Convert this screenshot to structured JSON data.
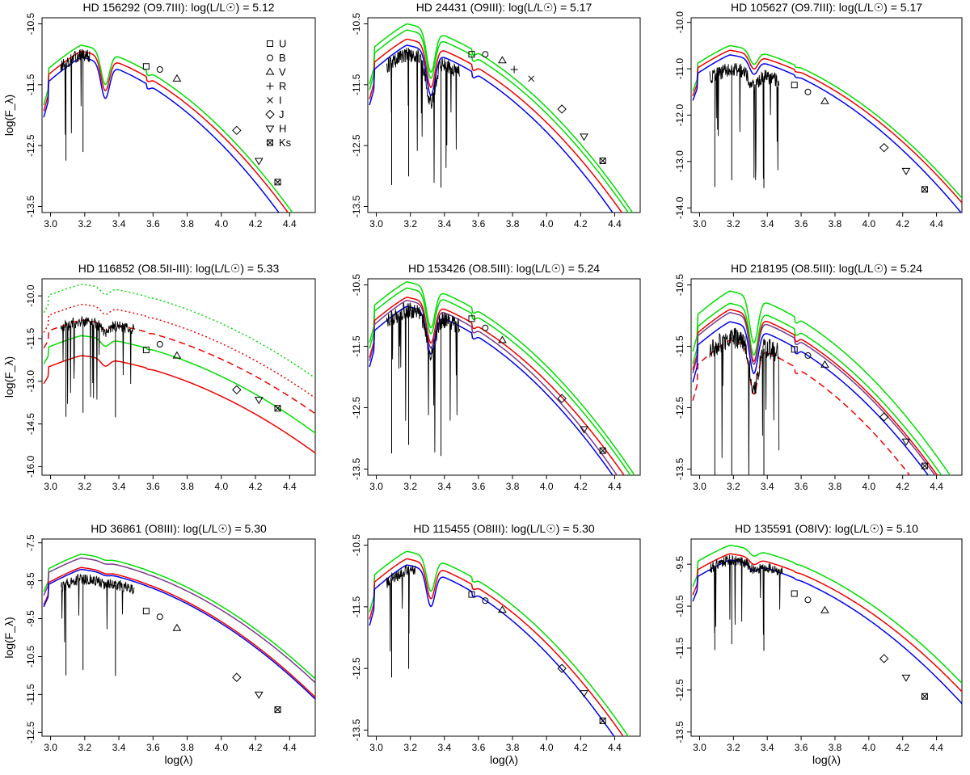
{
  "figure": {
    "xlabel": "log(λ)",
    "ylabel": "log(F_λ)",
    "band_legend": [
      "U",
      "B",
      "V",
      "R",
      "I",
      "J",
      "H",
      "Ks"
    ]
  },
  "colors": {
    "observed_spectrum": "#000000",
    "model_green": "#00dd00",
    "model_red": "#ee0000",
    "model_blue": "#0000ee",
    "model_purple": "#7a3a8a"
  },
  "chart_data": [
    {
      "type": "line",
      "title": "HD 156292 (O9.7III): log(L/L☉) = 5.12",
      "x_ticks": [
        "3.0",
        "3.2",
        "3.4",
        "3.6",
        "3.8",
        "4.0",
        "4.2",
        "4.4"
      ],
      "y_ticks": [
        "-10.5",
        "-11.5",
        "-12.5",
        "-13.5"
      ],
      "xlim": [
        2.95,
        4.55
      ],
      "ylim": [
        -13.6,
        -10.4
      ],
      "band_legend_shown": true,
      "photometry": {
        "x": [
          3.56,
          3.64,
          3.74,
          4.09,
          4.22,
          4.33
        ],
        "y": [
          -11.2,
          -11.25,
          -11.4,
          -12.25,
          -12.75,
          -13.1
        ],
        "bands": [
          "U",
          "B",
          "V",
          "J",
          "H",
          "Ks"
        ]
      },
      "spectrum": {
        "x_range": [
          3.06,
          3.23
        ],
        "level": -11.0,
        "noise": 0.4
      },
      "series": [
        {
          "color": "green",
          "style": "solid",
          "peak": -10.85,
          "offset": 0.12
        },
        {
          "color": "red",
          "style": "solid",
          "peak": -10.95,
          "offset": 0.0
        },
        {
          "color": "blue",
          "style": "solid",
          "peak": -11.05,
          "offset": -0.15
        }
      ],
      "balmer_dip": 0.55
    },
    {
      "type": "line",
      "title": "HD 24431 (O9III): log(L/L☉) = 5.17",
      "x_ticks": [
        "3.0",
        "3.2",
        "3.4",
        "3.6",
        "3.8",
        "4.0",
        "4.2",
        "4.4"
      ],
      "y_ticks": [
        "-10.5",
        "-11.5",
        "-12.5",
        "-13.5"
      ],
      "xlim": [
        2.95,
        4.55
      ],
      "ylim": [
        -13.6,
        -10.4
      ],
      "band_legend_shown": false,
      "photometry": {
        "x": [
          3.56,
          3.64,
          3.74,
          3.81,
          3.91,
          4.09,
          4.22,
          4.33
        ],
        "y": [
          -11.0,
          -11.0,
          -11.1,
          -11.25,
          -11.4,
          -11.9,
          -12.35,
          -12.75
        ],
        "bands": [
          "U",
          "B",
          "V",
          "R",
          "I",
          "J",
          "H",
          "Ks"
        ]
      },
      "spectrum": {
        "x_range": [
          3.06,
          3.49
        ],
        "level": -11.0,
        "noise": 0.5
      },
      "series": [
        {
          "color": "green",
          "style": "solid",
          "peak": -10.5,
          "offset": 0.2
        },
        {
          "color": "green",
          "style": "solid",
          "peak": -10.6,
          "offset": 0.1
        },
        {
          "color": "red",
          "style": "solid",
          "peak": -10.75,
          "offset": 0.0
        },
        {
          "color": "blue",
          "style": "solid",
          "peak": -10.85,
          "offset": -0.08
        }
      ],
      "balmer_dip": 0.7
    },
    {
      "type": "line",
      "title": "HD 105627 (O9.7III): log(L/L☉) = 5.17",
      "x_ticks": [
        "3.0",
        "3.2",
        "3.4",
        "3.6",
        "3.8",
        "4.0",
        "4.2",
        "4.4"
      ],
      "y_ticks": [
        "-10.0",
        "-11.0",
        "-12.0",
        "-13.0",
        "-14.0"
      ],
      "xlim": [
        2.95,
        4.55
      ],
      "ylim": [
        -14.1,
        -9.9
      ],
      "band_legend_shown": false,
      "photometry": {
        "x": [
          3.56,
          3.64,
          3.74,
          4.09,
          4.22,
          4.33
        ],
        "y": [
          -11.35,
          -11.5,
          -11.7,
          -12.7,
          -13.2,
          -13.6
        ],
        "bands": [
          "U",
          "B",
          "V",
          "J",
          "H",
          "Ks"
        ]
      },
      "spectrum": {
        "x_range": [
          3.06,
          3.47
        ],
        "level": -11.0,
        "noise": 0.6
      },
      "series": [
        {
          "color": "green",
          "style": "solid",
          "peak": -10.5,
          "offset": 0.15
        },
        {
          "color": "red",
          "style": "solid",
          "peak": -10.6,
          "offset": 0.05
        },
        {
          "color": "blue",
          "style": "solid",
          "peak": -10.7,
          "offset": -0.05
        }
      ],
      "balmer_dip": 0.3
    },
    {
      "type": "line",
      "title": "HD 116852 (O8.5II-III): log(L/L☉) = 5.33",
      "x_ticks": [
        "3.0",
        "3.2",
        "3.4",
        "3.6",
        "3.8",
        "4.0",
        "4.2",
        "4.4"
      ],
      "y_ticks": [
        "-10.0",
        "-11.5",
        "-13.0",
        "-14.5",
        "-16.0"
      ],
      "xlim": [
        2.95,
        4.55
      ],
      "ylim": [
        -16.3,
        -9.4
      ],
      "band_legend_shown": false,
      "photometry": {
        "x": [
          3.56,
          3.64,
          3.74,
          4.09,
          4.22,
          4.33
        ],
        "y": [
          -11.9,
          -11.7,
          -12.1,
          -13.3,
          -13.65,
          -13.95
        ],
        "bands": [
          "U",
          "B",
          "V",
          "J",
          "H",
          "Ks"
        ]
      },
      "spectrum": {
        "x_range": [
          3.06,
          3.49
        ],
        "level": -10.9,
        "noise": 0.8
      },
      "series": [
        {
          "color": "green",
          "style": "dotted",
          "peak": -9.6,
          "offset": 1.0
        },
        {
          "color": "red",
          "style": "dotted",
          "peak": -10.3,
          "offset": 0.35
        },
        {
          "color": "red",
          "style": "dashed",
          "peak": -10.85,
          "offset": 0.0
        },
        {
          "color": "green",
          "style": "solid",
          "peak": -11.4,
          "offset": -0.55
        },
        {
          "color": "red",
          "style": "solid",
          "peak": -12.1,
          "offset": -1.25
        }
      ],
      "balmer_dip": 0.25
    },
    {
      "type": "line",
      "title": "HD 153426 (O8.5III): log(L/L☉) = 5.24",
      "x_ticks": [
        "3.0",
        "3.2",
        "3.4",
        "3.6",
        "3.8",
        "4.0",
        "4.2",
        "4.4"
      ],
      "y_ticks": [
        "-10.5",
        "-11.5",
        "-12.5",
        "-13.5"
      ],
      "xlim": [
        2.95,
        4.55
      ],
      "ylim": [
        -13.6,
        -10.4
      ],
      "band_legend_shown": false,
      "photometry": {
        "x": [
          3.56,
          3.64,
          3.74,
          4.09,
          4.22,
          4.33
        ],
        "y": [
          -11.05,
          -11.2,
          -11.4,
          -12.35,
          -12.85,
          -13.2
        ],
        "bands": [
          "U",
          "B",
          "V",
          "J",
          "H",
          "Ks"
        ]
      },
      "spectrum": {
        "x_range": [
          3.06,
          3.49
        ],
        "level": -10.9,
        "noise": 0.55
      },
      "series": [
        {
          "color": "green",
          "style": "solid",
          "peak": -10.45,
          "offset": 0.2
        },
        {
          "color": "green",
          "style": "solid",
          "peak": -10.55,
          "offset": 0.12
        },
        {
          "color": "red",
          "style": "solid",
          "peak": -10.7,
          "offset": 0.0
        },
        {
          "color": "purple",
          "style": "solid",
          "peak": -10.75,
          "offset": -0.05
        },
        {
          "color": "blue",
          "style": "solid",
          "peak": -10.85,
          "offset": -0.12
        }
      ],
      "balmer_dip": 0.65
    },
    {
      "type": "line",
      "title": "HD 218195 (O8.5III): log(L/L☉) = 5.24",
      "x_ticks": [
        "3.0",
        "3.2",
        "3.4",
        "3.6",
        "3.8",
        "4.0",
        "4.2",
        "4.4"
      ],
      "y_ticks": [
        "-10.5",
        "-11.5",
        "-12.5",
        "-13.5"
      ],
      "xlim": [
        2.95,
        4.55
      ],
      "ylim": [
        -13.6,
        -10.4
      ],
      "band_legend_shown": false,
      "photometry": {
        "x": [
          3.56,
          3.64,
          3.74,
          4.09,
          4.22,
          4.33
        ],
        "y": [
          -11.55,
          -11.65,
          -11.8,
          -12.65,
          -13.05,
          -13.45
        ],
        "bands": [
          "U",
          "B",
          "V",
          "J",
          "H",
          "Ks"
        ]
      },
      "spectrum": {
        "x_range": [
          3.06,
          3.47
        ],
        "level": -11.35,
        "noise": 0.7
      },
      "series": [
        {
          "color": "green",
          "style": "solid",
          "peak": -10.6,
          "offset": 0.4
        },
        {
          "color": "green",
          "style": "solid",
          "peak": -10.8,
          "offset": 0.25
        },
        {
          "color": "red",
          "style": "solid",
          "peak": -10.9,
          "offset": 0.15
        },
        {
          "color": "purple",
          "style": "solid",
          "peak": -10.95,
          "offset": 0.1
        },
        {
          "color": "blue",
          "style": "solid",
          "peak": -11.1,
          "offset": 0.0
        },
        {
          "color": "red",
          "style": "dashed",
          "peak": -11.4,
          "offset": -0.3
        }
      ],
      "balmer_dip": 0.75
    },
    {
      "type": "line",
      "title": "HD 36861 (O8III): log(L/L☉) = 5.30",
      "x_ticks": [
        "3.0",
        "3.2",
        "3.4",
        "3.6",
        "3.8",
        "4.0",
        "4.2",
        "4.4"
      ],
      "y_ticks": [
        "-7.5",
        "-8.5",
        "-9.5",
        "-10.5",
        "-11.5",
        "-12.5"
      ],
      "xlim": [
        2.95,
        4.55
      ],
      "ylim": [
        -12.6,
        -7.4
      ],
      "band_legend_shown": false,
      "photometry": {
        "x": [
          3.56,
          3.64,
          3.74,
          4.09,
          4.22,
          4.33
        ],
        "y": [
          -9.3,
          -9.45,
          -9.75,
          -11.05,
          -11.5,
          -11.9
        ],
        "bands": [
          "U",
          "B",
          "V",
          "J",
          "H",
          "Ks"
        ]
      },
      "spectrum": {
        "x_range": [
          3.06,
          3.49
        ],
        "level": -8.45,
        "noise": 0.6
      },
      "series": [
        {
          "color": "green",
          "style": "solid",
          "peak": -7.8,
          "offset": 0.1
        },
        {
          "color": "purple",
          "style": "solid",
          "peak": -7.9,
          "offset": 0.05
        },
        {
          "color": "red",
          "style": "solid",
          "peak": -8.15,
          "offset": -0.05
        },
        {
          "color": "blue",
          "style": "solid",
          "peak": -8.2,
          "offset": -0.1
        }
      ],
      "balmer_dip": 0.05
    },
    {
      "type": "line",
      "title": "HD 115455 (O8III): log(L/L☉) = 5.30",
      "x_ticks": [
        "3.0",
        "3.2",
        "3.4",
        "3.6",
        "3.8",
        "4.0",
        "4.2",
        "4.4"
      ],
      "y_ticks": [
        "-10.5",
        "-11.5",
        "-12.5",
        "-13.5"
      ],
      "xlim": [
        2.95,
        4.55
      ],
      "ylim": [
        -13.6,
        -10.4
      ],
      "band_legend_shown": false,
      "photometry": {
        "x": [
          3.56,
          3.64,
          3.74,
          4.09,
          4.22,
          4.33
        ],
        "y": [
          -11.3,
          -11.4,
          -11.55,
          -12.5,
          -12.9,
          -13.35
        ],
        "bands": [
          "U",
          "B",
          "V",
          "J",
          "H",
          "Ks"
        ]
      },
      "spectrum": {
        "x_range": [
          3.06,
          3.23
        ],
        "level": -10.9,
        "noise": 0.4
      },
      "series": [
        {
          "color": "green",
          "style": "solid",
          "peak": -10.6,
          "offset": 0.15
        },
        {
          "color": "red",
          "style": "solid",
          "peak": -10.72,
          "offset": 0.05
        },
        {
          "color": "blue",
          "style": "solid",
          "peak": -10.82,
          "offset": -0.05
        }
      ],
      "balmer_dip": 0.55
    },
    {
      "type": "line",
      "title": "HD 135591 (O8IV): log(L/L☉) = 5.10",
      "x_ticks": [
        "3.0",
        "3.2",
        "3.4",
        "3.6",
        "3.8",
        "4.0",
        "4.2",
        "4.4"
      ],
      "y_ticks": [
        "-9.5",
        "-10.5",
        "-11.5",
        "-12.5",
        "-13.5"
      ],
      "xlim": [
        2.95,
        4.55
      ],
      "ylim": [
        -13.6,
        -8.9
      ],
      "band_legend_shown": false,
      "photometry": {
        "x": [
          3.56,
          3.64,
          3.74,
          4.09,
          4.22,
          4.33
        ],
        "y": [
          -10.2,
          -10.35,
          -10.6,
          -11.75,
          -12.2,
          -12.65
        ],
        "bands": [
          "U",
          "B",
          "V",
          "J",
          "H",
          "Ks"
        ]
      },
      "spectrum": {
        "x_range": [
          3.06,
          3.49
        ],
        "level": -9.4,
        "noise": 0.5
      },
      "series": [
        {
          "color": "green",
          "style": "solid",
          "peak": -9.05,
          "offset": 0.2
        },
        {
          "color": "red",
          "style": "solid",
          "peak": -9.25,
          "offset": 0.05
        },
        {
          "color": "blue",
          "style": "solid",
          "peak": -9.4,
          "offset": -0.1
        }
      ],
      "balmer_dip": 0.15
    }
  ]
}
